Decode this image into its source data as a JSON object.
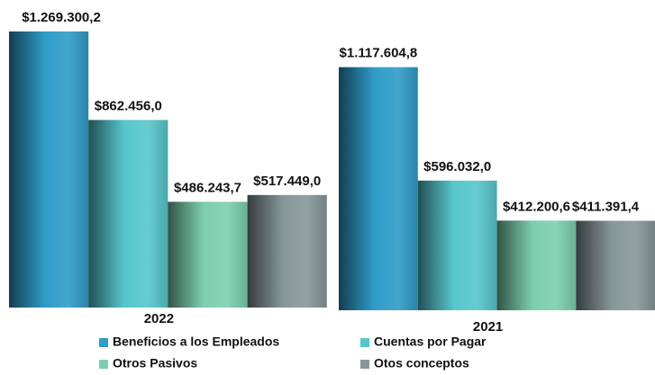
{
  "chart_data": {
    "type": "bar",
    "categories": [
      "2022",
      "2021"
    ],
    "series": [
      {
        "name": "Beneficios a los Empleados",
        "color": "#2f9cc8",
        "values": [
          1269300.2,
          1117604.8
        ],
        "value_labels": [
          "$1.269.300,2",
          "$1.117.604,8"
        ]
      },
      {
        "name": "Cuentas por Pagar",
        "color": "#56c6cc",
        "values": [
          862456.0,
          596032.0
        ],
        "value_labels": [
          "$862.456,0",
          "$596.032,0"
        ]
      },
      {
        "name": "Otros Pasivos",
        "color": "#7ccfae",
        "values": [
          486243.7,
          412200.6
        ],
        "value_labels": [
          "$486.243,7",
          "$412.200,6"
        ]
      },
      {
        "name": "Otos conceptos",
        "color": "#86979a",
        "values": [
          517449.0,
          411391.4
        ],
        "value_labels": [
          "$517.449,0",
          "$411.391,4"
        ]
      }
    ]
  }
}
